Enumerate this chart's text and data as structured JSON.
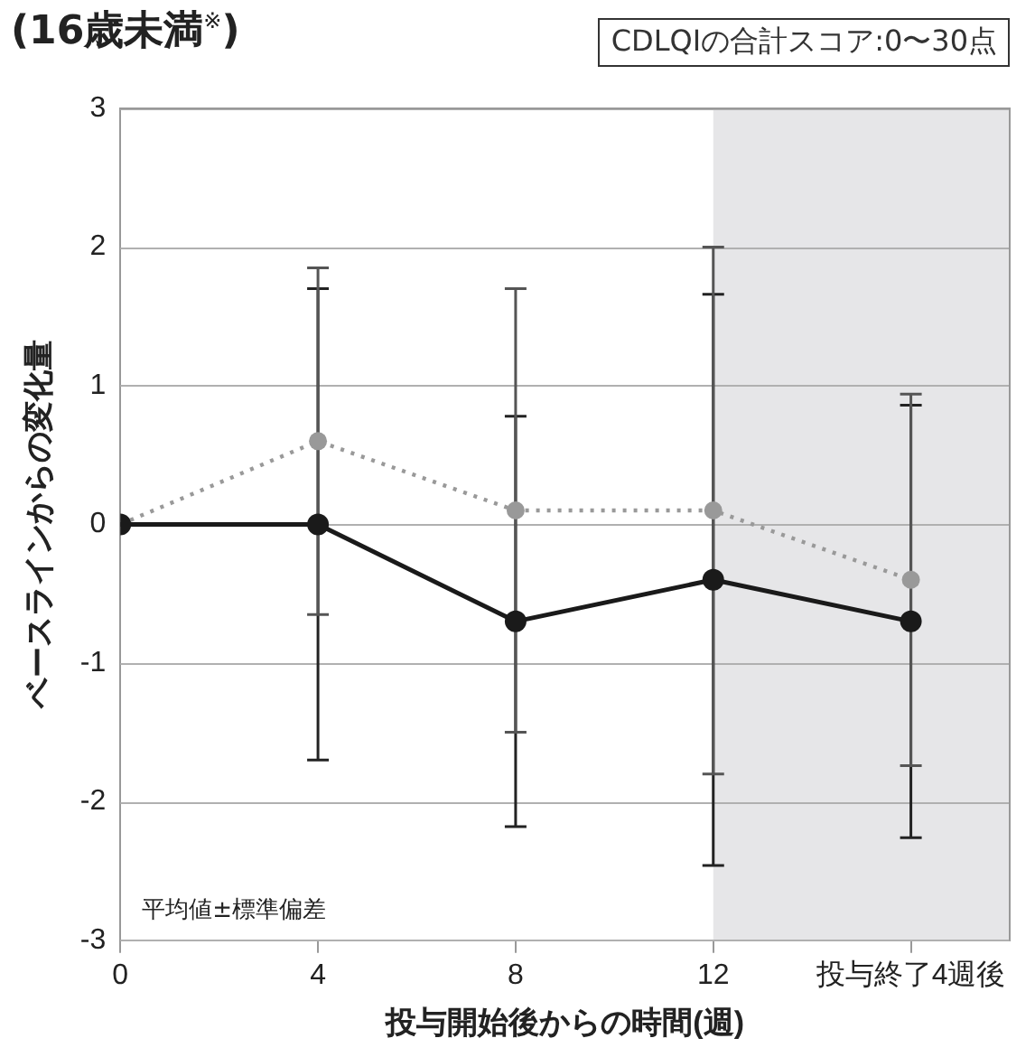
{
  "chart_data": {
    "type": "line",
    "title": "(16歳未満$^{※}$)",
    "xlabel": "投与開始後からの時間(週)",
    "ylabel": "ベースラインからの変化量",
    "annotations": [
      "CDLQIの合計スコア:0〜30点",
      "平均値±標準偏差"
    ],
    "categories": [
      "0",
      "4",
      "8",
      "12",
      "投与終了4週後"
    ],
    "series": [
      {
        "color": "#1a1a1a",
        "line_style": "solid",
        "values": [
          0,
          0,
          -0.7,
          -0.4,
          -0.7
        ],
        "errors": [
          null,
          [
            -1.7,
            1.7
          ],
          [
            -2.18,
            0.78
          ],
          [
            -2.46,
            1.66
          ],
          [
            -2.26,
            0.86
          ]
        ]
      },
      {
        "color": "#999999",
        "line_style": "dotted",
        "values": [
          0,
          0.6,
          0.1,
          0.1,
          -0.4
        ],
        "errors": [
          null,
          [
            -0.65,
            1.85
          ],
          [
            -1.5,
            1.7
          ],
          [
            -1.8,
            2.0
          ],
          [
            -1.74,
            0.94
          ]
        ]
      }
    ],
    "ylim": [
      -3,
      3
    ],
    "yticks": [
      -3,
      -2,
      -1,
      0,
      1,
      2,
      3
    ],
    "grid": "y",
    "marker": "circle",
    "legend": false,
    "bands": [
      {
        "axis": "x",
        "from": "12",
        "to": "投与終了4週後",
        "color": "#e6e6e8"
      }
    ]
  }
}
